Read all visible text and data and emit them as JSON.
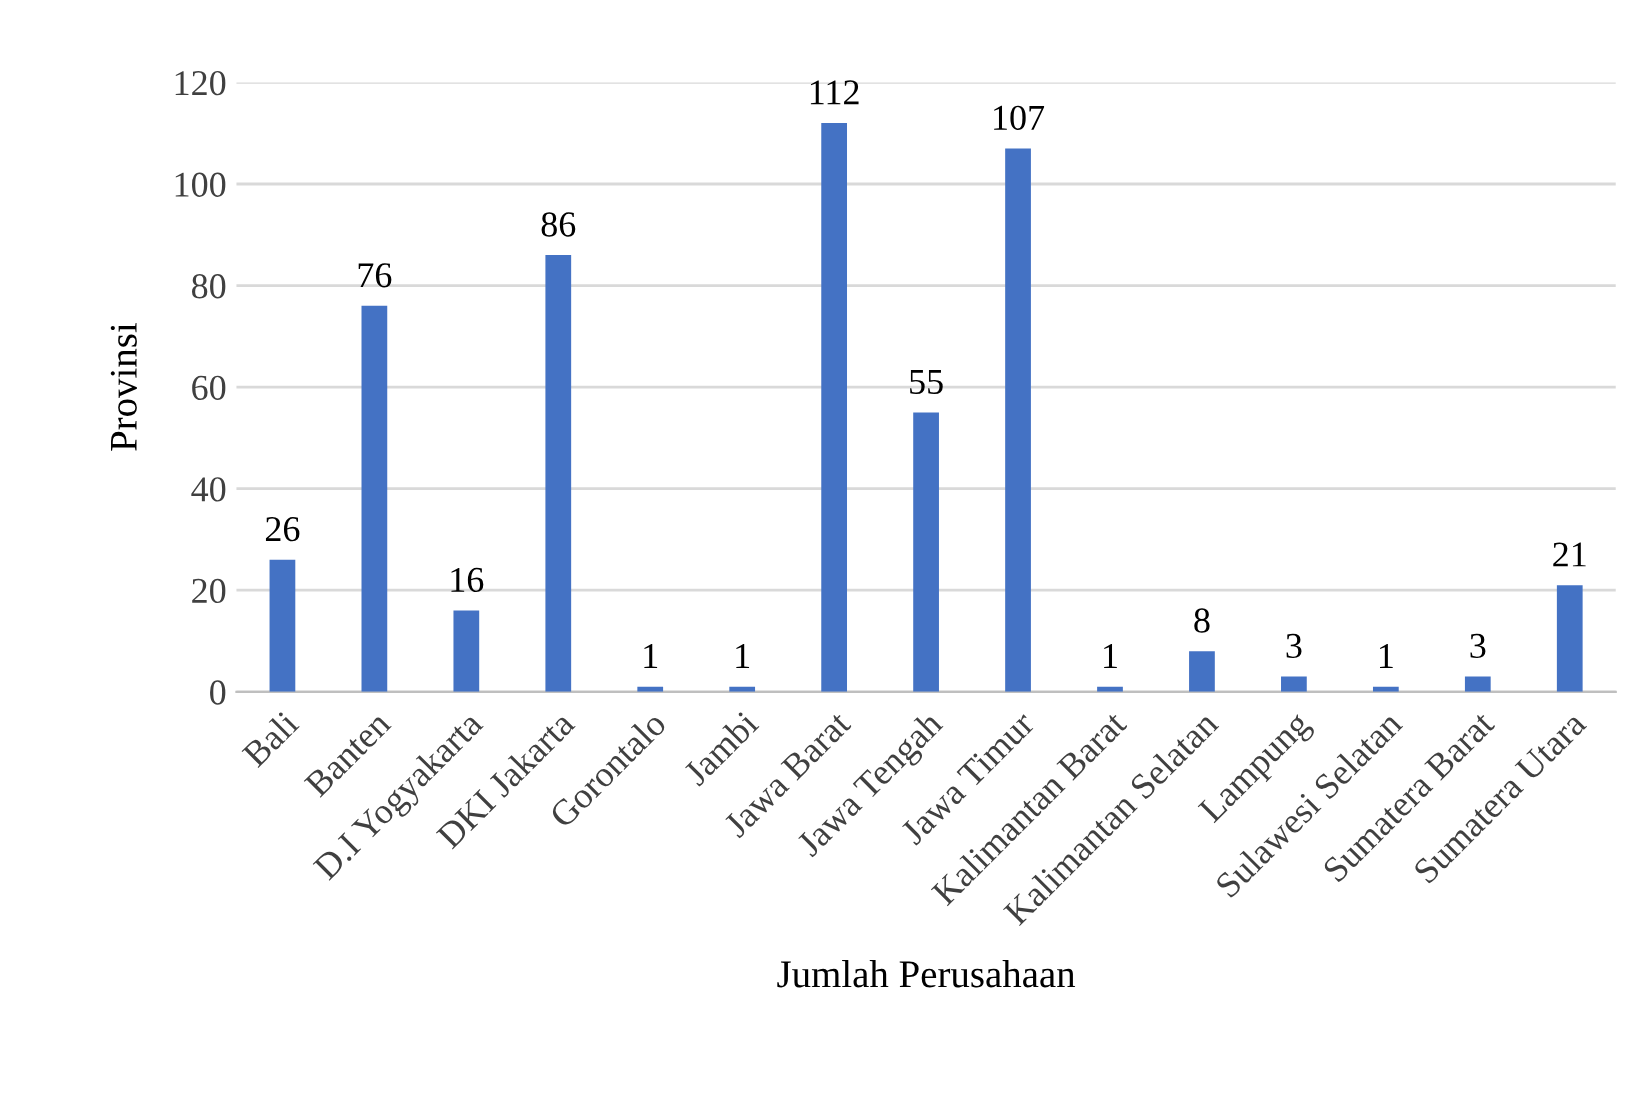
{
  "chart_data": {
    "type": "bar",
    "xlabel": "Jumlah Perusahaan",
    "ylabel": "Provinsi",
    "categories": [
      "Bali",
      "Banten",
      "D.I Yogyakarta",
      "DKI Jakarta",
      "Gorontalo",
      "Jambi",
      "Jawa Barat",
      "Jawa Tengah",
      "Jawa Timur",
      "Kalimantan Barat",
      "Kalimantan Selatan",
      "Lampung",
      "Sulawesi Selatan",
      "Sumatera Barat",
      "Sumatera Utara"
    ],
    "values": [
      26,
      76,
      16,
      86,
      1,
      1,
      112,
      55,
      107,
      1,
      8,
      3,
      1,
      3,
      21
    ],
    "color": "#4472c4",
    "ylim": [
      0,
      120
    ],
    "yticks": [
      0,
      20,
      40,
      60,
      80,
      100,
      120
    ],
    "grid": "y",
    "data_labels": true
  }
}
